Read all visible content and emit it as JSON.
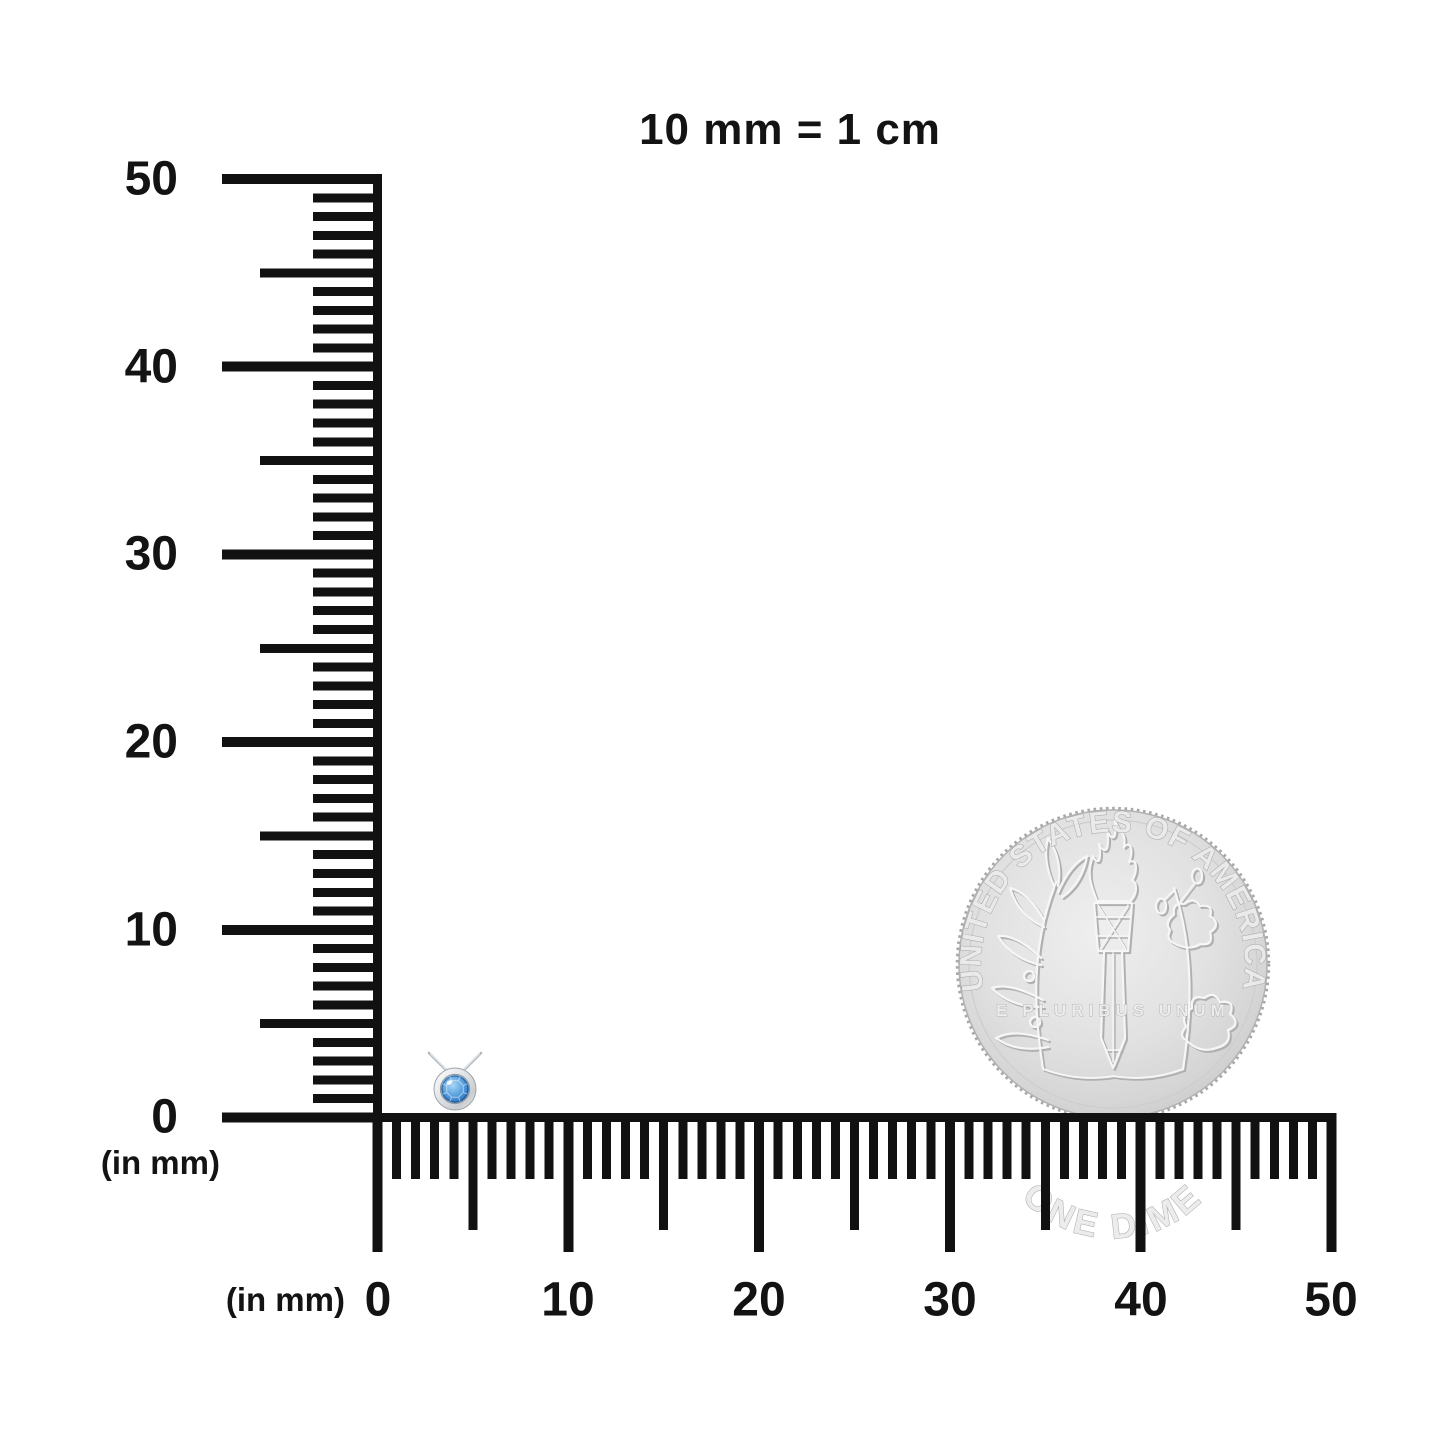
{
  "title": "10 mm = 1 cm",
  "vertical_ruler": {
    "unit_label": "(in mm)",
    "min": 0,
    "max": 50,
    "major_step": 10,
    "medium_step": 5,
    "minor_step": 1,
    "labels": [
      "50",
      "40",
      "30",
      "20",
      "10",
      "0"
    ],
    "label_values": [
      50,
      40,
      30,
      20,
      10,
      0
    ]
  },
  "horizontal_ruler": {
    "unit_label": "(in mm)",
    "min": 0,
    "max": 50,
    "major_step": 10,
    "medium_step": 5,
    "minor_step": 1,
    "labels": [
      "0",
      "10",
      "20",
      "30",
      "40",
      "50"
    ],
    "label_values": [
      0,
      10,
      20,
      30,
      40,
      50
    ]
  },
  "coin": {
    "top_text": "UNITED STATES OF AMERICA",
    "bottom_text": "ONE DIME",
    "middle_text": "E PLURIBUS UNUM",
    "face_color": "#dcdcdc",
    "edge_color": "#a8a8a8"
  },
  "pendant": {
    "stone_color": "#3c86cc",
    "stone_edge_color": "#215e9e",
    "metal_color": "#e9ebed",
    "chain_color": "#aeb6bd"
  },
  "ink_color": "#111111"
}
